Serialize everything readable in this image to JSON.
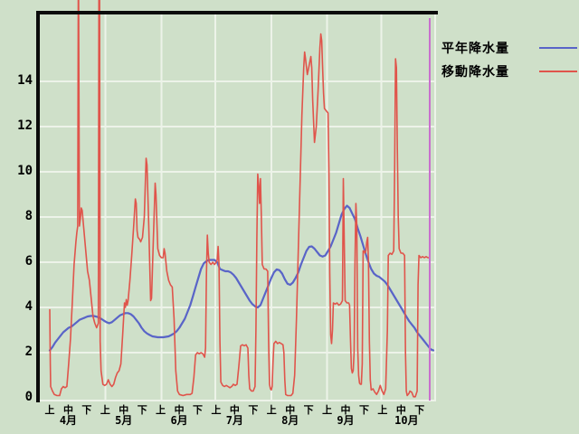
{
  "page": {
    "background": "#cfe0c9",
    "grid_color": "#edf3e9",
    "frame_color": "#0b0b0b",
    "text_color": "#000000"
  },
  "legend": {
    "items": [
      {
        "label": "平年降水量",
        "color": "#5964c8"
      },
      {
        "label": "移動降水量",
        "color": "#e0544b"
      }
    ]
  },
  "axes": {
    "y_ticks": [
      0,
      2,
      4,
      6,
      8,
      10,
      12,
      14
    ],
    "months": [
      "4月",
      "5月",
      "6月",
      "7月",
      "8月",
      "9月",
      "10月"
    ],
    "periods": [
      "上",
      "中",
      "下"
    ]
  },
  "marker": {
    "name": "current-position-line",
    "color": "#c96fce",
    "day": 211
  },
  "chart_data": {
    "type": "line",
    "title": "",
    "xlabel": "",
    "ylabel": "",
    "x_range_days": [
      0,
      214
    ],
    "x_axis_note": "day index from 4月1日; ticks 上/中/下 per month 4月-10月",
    "ylim": [
      0,
      17
    ],
    "grid": "on",
    "legend_position": "top-right-outside",
    "series": [
      {
        "name": "平年降水量",
        "color": "#5964c8",
        "width": 2.2,
        "x_start": 0,
        "x_step": 1.5,
        "values": [
          2.1,
          2.25,
          2.45,
          2.6,
          2.75,
          2.9,
          3.0,
          3.1,
          3.15,
          3.25,
          3.35,
          3.45,
          3.5,
          3.55,
          3.6,
          3.62,
          3.63,
          3.6,
          3.57,
          3.5,
          3.42,
          3.35,
          3.3,
          3.35,
          3.45,
          3.55,
          3.65,
          3.7,
          3.75,
          3.75,
          3.7,
          3.6,
          3.45,
          3.3,
          3.1,
          2.95,
          2.85,
          2.78,
          2.72,
          2.7,
          2.68,
          2.68,
          2.68,
          2.7,
          2.72,
          2.78,
          2.85,
          2.95,
          3.1,
          3.3,
          3.5,
          3.8,
          4.1,
          4.5,
          4.9,
          5.3,
          5.7,
          5.95,
          6.05,
          6.1,
          6.1,
          6.1,
          6.0,
          5.7,
          5.65,
          5.6,
          5.6,
          5.55,
          5.45,
          5.3,
          5.1,
          4.9,
          4.7,
          4.5,
          4.3,
          4.15,
          4.05,
          4.0,
          4.1,
          4.4,
          4.7,
          5.0,
          5.3,
          5.55,
          5.68,
          5.65,
          5.5,
          5.25,
          5.05,
          5.0,
          5.1,
          5.3,
          5.55,
          5.9,
          6.2,
          6.5,
          6.68,
          6.7,
          6.6,
          6.45,
          6.3,
          6.25,
          6.3,
          6.5,
          6.7,
          7.0,
          7.3,
          7.7,
          8.1,
          8.35,
          8.5,
          8.4,
          8.15,
          7.9,
          7.5,
          7.15,
          6.75,
          6.35,
          6.0,
          5.7,
          5.5,
          5.4,
          5.35,
          5.25,
          5.15,
          5.0,
          4.8,
          4.6,
          4.4,
          4.2,
          4.0,
          3.8,
          3.6,
          3.4,
          3.25,
          3.1,
          2.9,
          2.75,
          2.6,
          2.45,
          2.3,
          2.15,
          2.1
        ]
      },
      {
        "name": "移動降水量",
        "color": "#e0544b",
        "width": 1.6,
        "points": [
          [
            0,
            3.9
          ],
          [
            0.3,
            1.5
          ],
          [
            0.5,
            0.5
          ],
          [
            1.5,
            0.3
          ],
          [
            2.5,
            0.15
          ],
          [
            4,
            0.1
          ],
          [
            5.5,
            0.1
          ],
          [
            6.5,
            0.4
          ],
          [
            7.5,
            0.5
          ],
          [
            8.5,
            0.45
          ],
          [
            9.5,
            0.5
          ],
          [
            10.5,
            1.5
          ],
          [
            11.5,
            2.6
          ],
          [
            12.5,
            4.2
          ],
          [
            13.5,
            5.9
          ],
          [
            14.5,
            6.9
          ],
          [
            15,
            7.3
          ],
          [
            15.5,
            7.6
          ],
          [
            15.8,
            17.6
          ],
          [
            16,
            17.6
          ],
          [
            16.5,
            7.6
          ],
          [
            17,
            7.9
          ],
          [
            17.5,
            8.4
          ],
          [
            18,
            8.3
          ],
          [
            19,
            7.4
          ],
          [
            20,
            6.5
          ],
          [
            21,
            5.6
          ],
          [
            22,
            5.2
          ],
          [
            23,
            4.4
          ],
          [
            24,
            3.6
          ],
          [
            25,
            3.3
          ],
          [
            26,
            3.1
          ],
          [
            27,
            3.3
          ],
          [
            27.3,
            17.6
          ],
          [
            27.7,
            17.6
          ],
          [
            28,
            2.5
          ],
          [
            28.5,
            1.2
          ],
          [
            29.5,
            0.6
          ],
          [
            30.5,
            0.55
          ],
          [
            31.5,
            0.6
          ],
          [
            32.5,
            0.8
          ],
          [
            33.5,
            0.6
          ],
          [
            34.5,
            0.5
          ],
          [
            35.5,
            0.6
          ],
          [
            36.5,
            0.9
          ],
          [
            37.5,
            1.1
          ],
          [
            38.5,
            1.2
          ],
          [
            39.5,
            1.5
          ],
          [
            40.5,
            2.8
          ],
          [
            41.5,
            4.2
          ],
          [
            42,
            4.0
          ],
          [
            42.5,
            4.35
          ],
          [
            43,
            4.1
          ],
          [
            43.5,
            4.3
          ],
          [
            44.5,
            5.2
          ],
          [
            45.5,
            6.3
          ],
          [
            46.5,
            7.5
          ],
          [
            47.5,
            8.8
          ],
          [
            48,
            8.6
          ],
          [
            48.5,
            7.4
          ],
          [
            49,
            7.1
          ],
          [
            50,
            7.0
          ],
          [
            50.5,
            6.9
          ],
          [
            51.5,
            7.1
          ],
          [
            52.5,
            8.0
          ],
          [
            53.5,
            10.6
          ],
          [
            54,
            10.3
          ],
          [
            55,
            7.5
          ],
          [
            56,
            4.3
          ],
          [
            56.5,
            4.4
          ],
          [
            57.5,
            7.0
          ],
          [
            58.5,
            9.5
          ],
          [
            59,
            9.0
          ],
          [
            60,
            6.6
          ],
          [
            61,
            6.3
          ],
          [
            62,
            6.2
          ],
          [
            63,
            6.2
          ],
          [
            63.5,
            6.6
          ],
          [
            64,
            6.4
          ],
          [
            65,
            5.6
          ],
          [
            66,
            5.2
          ],
          [
            67,
            5.0
          ],
          [
            68,
            4.9
          ],
          [
            69,
            3.5
          ],
          [
            70,
            1.2
          ],
          [
            71,
            0.3
          ],
          [
            72,
            0.15
          ],
          [
            74,
            0.1
          ],
          [
            76,
            0.15
          ],
          [
            78,
            0.15
          ],
          [
            79,
            0.2
          ],
          [
            80,
            0.9
          ],
          [
            81,
            1.9
          ],
          [
            82,
            2.0
          ],
          [
            83,
            1.95
          ],
          [
            84,
            2.0
          ],
          [
            85,
            1.95
          ],
          [
            86,
            1.8
          ],
          [
            86.5,
            2.2
          ],
          [
            87,
            5.5
          ],
          [
            87.5,
            7.2
          ],
          [
            88,
            6.4
          ],
          [
            88.5,
            6.0
          ],
          [
            89.5,
            5.9
          ],
          [
            90.5,
            6.0
          ],
          [
            91.5,
            5.9
          ],
          [
            92.5,
            6.0
          ],
          [
            93,
            6.1
          ],
          [
            93.5,
            6.7
          ],
          [
            94,
            5.9
          ],
          [
            94.5,
            2.5
          ],
          [
            95,
            0.7
          ],
          [
            96,
            0.55
          ],
          [
            97,
            0.5
          ],
          [
            98,
            0.55
          ],
          [
            99,
            0.5
          ],
          [
            100,
            0.45
          ],
          [
            101,
            0.5
          ],
          [
            102,
            0.6
          ],
          [
            103,
            0.55
          ],
          [
            104,
            0.6
          ],
          [
            105,
            1.4
          ],
          [
            106,
            2.3
          ],
          [
            107,
            2.35
          ],
          [
            108,
            2.3
          ],
          [
            109,
            2.35
          ],
          [
            110,
            2.2
          ],
          [
            110.5,
            1.0
          ],
          [
            111,
            0.4
          ],
          [
            112,
            0.3
          ],
          [
            113,
            0.3
          ],
          [
            114,
            0.5
          ],
          [
            114.5,
            3.0
          ],
          [
            115,
            7.0
          ],
          [
            115.5,
            9.9
          ],
          [
            116,
            9.4
          ],
          [
            116.5,
            8.6
          ],
          [
            117,
            9.7
          ],
          [
            117.5,
            8.0
          ],
          [
            118,
            5.9
          ],
          [
            119,
            5.7
          ],
          [
            120,
            5.7
          ],
          [
            121,
            5.6
          ],
          [
            121.5,
            2.5
          ],
          [
            122,
            0.6
          ],
          [
            122.5,
            0.4
          ],
          [
            123,
            0.35
          ],
          [
            123.5,
            0.5
          ],
          [
            124,
            1.6
          ],
          [
            124.5,
            2.4
          ],
          [
            125.5,
            2.5
          ],
          [
            126.5,
            2.4
          ],
          [
            127.5,
            2.45
          ],
          [
            128.5,
            2.4
          ],
          [
            129.5,
            2.35
          ],
          [
            130,
            2.0
          ],
          [
            130.5,
            0.8
          ],
          [
            131,
            0.15
          ],
          [
            132,
            0.1
          ],
          [
            133,
            0.1
          ],
          [
            134,
            0.1
          ],
          [
            135,
            0.2
          ],
          [
            136,
            1.0
          ],
          [
            137,
            3.5
          ],
          [
            138,
            6.5
          ],
          [
            139,
            9.5
          ],
          [
            140,
            12.5
          ],
          [
            141,
            14.6
          ],
          [
            141.5,
            15.3
          ],
          [
            142,
            15.0
          ],
          [
            143,
            14.3
          ],
          [
            144,
            14.7
          ],
          [
            145,
            15.1
          ],
          [
            145.5,
            14.6
          ],
          [
            146,
            13.2
          ],
          [
            147,
            11.3
          ],
          [
            148,
            12.0
          ],
          [
            149,
            13.6
          ],
          [
            150,
            15.5
          ],
          [
            150.5,
            16.1
          ],
          [
            151,
            15.8
          ],
          [
            151.5,
            14.6
          ],
          [
            152,
            13.5
          ],
          [
            152.5,
            12.8
          ],
          [
            153.5,
            12.7
          ],
          [
            154.5,
            12.6
          ],
          [
            155,
            10.0
          ],
          [
            155.5,
            5.5
          ],
          [
            156,
            2.8
          ],
          [
            156.5,
            2.4
          ],
          [
            157,
            3.0
          ],
          [
            157.5,
            4.2
          ],
          [
            158.5,
            4.15
          ],
          [
            159.5,
            4.2
          ],
          [
            160.5,
            4.1
          ],
          [
            161.5,
            4.15
          ],
          [
            162.5,
            4.3
          ],
          [
            163,
            9.7
          ],
          [
            163.5,
            7.0
          ],
          [
            164,
            4.3
          ],
          [
            165,
            4.2
          ],
          [
            166,
            4.2
          ],
          [
            166.5,
            4.1
          ],
          [
            167,
            2.6
          ],
          [
            167.5,
            1.3
          ],
          [
            168,
            1.1
          ],
          [
            168.5,
            1.2
          ],
          [
            169,
            2.0
          ],
          [
            169.5,
            6.0
          ],
          [
            170,
            8.6
          ],
          [
            170.5,
            7.6
          ],
          [
            171,
            2.2
          ],
          [
            171.5,
            1.0
          ],
          [
            172,
            0.65
          ],
          [
            172.5,
            0.6
          ],
          [
            173,
            0.6
          ],
          [
            173.5,
            1.5
          ],
          [
            174,
            6.5
          ],
          [
            174.5,
            6.5
          ],
          [
            175,
            6.4
          ],
          [
            175.5,
            6.5
          ],
          [
            176,
            6.9
          ],
          [
            176.5,
            7.1
          ],
          [
            177,
            6.0
          ],
          [
            177.5,
            2.5
          ],
          [
            178,
            0.8
          ],
          [
            178.5,
            0.35
          ],
          [
            179.5,
            0.4
          ],
          [
            180.5,
            0.25
          ],
          [
            181.5,
            0.15
          ],
          [
            182.5,
            0.3
          ],
          [
            183.5,
            0.55
          ],
          [
            184.5,
            0.3
          ],
          [
            185.5,
            0.15
          ],
          [
            186.5,
            0.4
          ],
          [
            187.5,
            3.0
          ],
          [
            188,
            6.3
          ],
          [
            189,
            6.4
          ],
          [
            190,
            6.35
          ],
          [
            191,
            6.5
          ],
          [
            191.5,
            10.0
          ],
          [
            192,
            15.0
          ],
          [
            192.5,
            14.6
          ],
          [
            193,
            11.0
          ],
          [
            193.5,
            8.0
          ],
          [
            194,
            6.6
          ],
          [
            195,
            6.4
          ],
          [
            196,
            6.4
          ],
          [
            197,
            6.3
          ],
          [
            197.5,
            2.0
          ],
          [
            198,
            0.3
          ],
          [
            198.5,
            0.1
          ],
          [
            199.5,
            0.2
          ],
          [
            200,
            0.3
          ],
          [
            201,
            0.25
          ],
          [
            202,
            0.05
          ],
          [
            203,
            0.05
          ],
          [
            204,
            0.3
          ],
          [
            204.5,
            5.0
          ],
          [
            205,
            6.3
          ],
          [
            206,
            6.2
          ],
          [
            207,
            6.25
          ],
          [
            208,
            6.2
          ],
          [
            209,
            6.25
          ],
          [
            210,
            6.2
          ],
          [
            211,
            6.2
          ]
        ]
      }
    ]
  }
}
